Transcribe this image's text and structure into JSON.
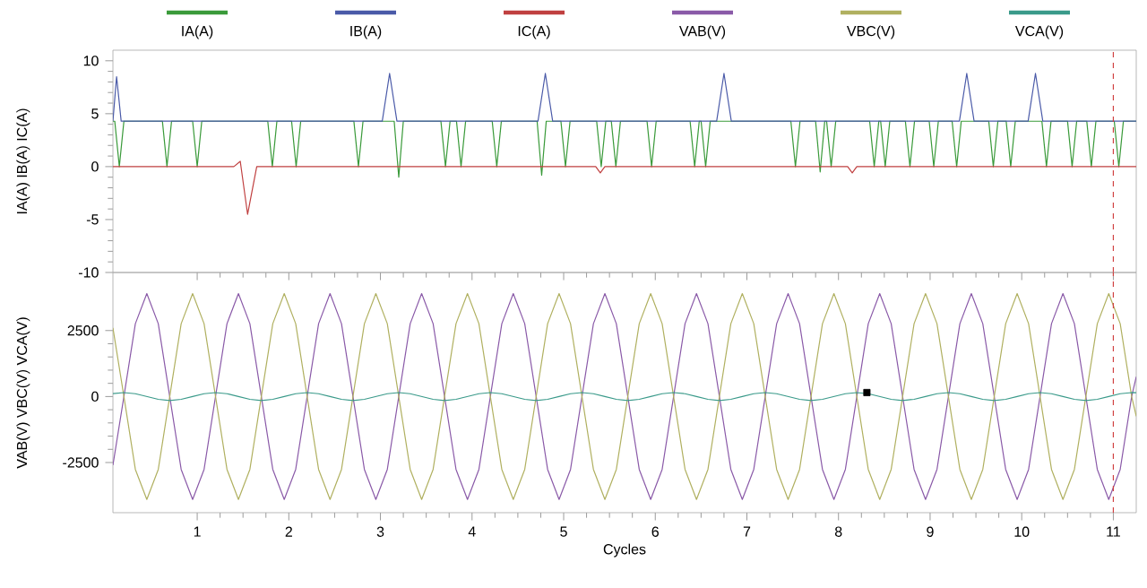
{
  "chart_data": [
    {
      "type": "line",
      "ylabel": "IA(A) IB(A) IC(A)",
      "xlim": [
        0.08,
        11.25
      ],
      "xticks": [
        1,
        2,
        3,
        4,
        5,
        6,
        7,
        8,
        9,
        10,
        11
      ],
      "ylim": [
        -10,
        11
      ],
      "yticks": [
        -10,
        -5,
        0,
        5,
        10
      ],
      "tick_labels": "y",
      "legend": "top",
      "ref_lines": [
        {
          "axis": "x",
          "value": 11,
          "color": "#d04040",
          "line_style": "dashed"
        }
      ],
      "series": [
        {
          "name": "IA(A)",
          "color": "#3a9a3a",
          "x": [
            0.08,
            0.1,
            0.15,
            0.2,
            0.62,
            0.67,
            0.72,
            0.95,
            1.0,
            1.05,
            1.77,
            1.82,
            1.87,
            2.03,
            2.08,
            2.13,
            2.71,
            2.76,
            2.81,
            3.15,
            3.2,
            3.25,
            3.66,
            3.71,
            3.76,
            3.83,
            3.88,
            3.93,
            4.22,
            4.27,
            4.32,
            4.71,
            4.76,
            4.81,
            4.97,
            5.02,
            5.07,
            5.36,
            5.41,
            5.46,
            5.52,
            5.57,
            5.62,
            5.91,
            5.96,
            6.01,
            6.38,
            6.43,
            6.48,
            6.5,
            6.55,
            6.6,
            7.48,
            7.53,
            7.58,
            7.75,
            7.8,
            7.85,
            7.87,
            7.92,
            7.97,
            8.34,
            8.39,
            8.44,
            8.46,
            8.51,
            8.56,
            8.73,
            8.78,
            8.83,
            8.99,
            9.04,
            9.09,
            9.24,
            9.29,
            9.34,
            9.64,
            9.69,
            9.74,
            9.83,
            9.88,
            9.93,
            10.22,
            10.27,
            10.32,
            10.5,
            10.55,
            10.6,
            10.71,
            10.76,
            10.81,
            11.01,
            11.06,
            11.11,
            11.25
          ],
          "values": [
            4.3,
            4.3,
            0,
            4.3,
            4.3,
            0,
            4.3,
            4.3,
            0,
            4.3,
            4.3,
            0,
            4.3,
            4.3,
            0,
            4.3,
            4.3,
            0,
            4.3,
            4.3,
            -1,
            4.3,
            4.3,
            0,
            4.3,
            4.3,
            0,
            4.3,
            4.3,
            0,
            4.3,
            4.3,
            -0.8,
            4.3,
            4.3,
            0,
            4.3,
            4.3,
            0,
            4.3,
            4.3,
            0,
            4.3,
            4.3,
            0,
            4.3,
            4.3,
            0,
            4.3,
            4.3,
            0,
            4.3,
            4.3,
            0,
            4.3,
            4.3,
            -0.5,
            4.3,
            4.3,
            0,
            4.3,
            4.3,
            0,
            4.3,
            4.3,
            0,
            4.3,
            4.3,
            0,
            4.3,
            4.3,
            0,
            4.3,
            4.3,
            0,
            4.3,
            4.3,
            0,
            4.3,
            4.3,
            0,
            4.3,
            4.3,
            0,
            4.3,
            4.3,
            0,
            4.3,
            4.3,
            0,
            4.3,
            4.3,
            0,
            4.3,
            4.3
          ]
        },
        {
          "name": "IB(A)",
          "color": "#4a5aa8",
          "x": [
            0.08,
            0.12,
            0.17,
            3.02,
            3.1,
            3.18,
            4.72,
            4.8,
            4.88,
            6.67,
            6.75,
            6.83,
            9.32,
            9.4,
            9.48,
            10.07,
            10.15,
            10.23,
            11.25
          ],
          "values": [
            4.3,
            8.5,
            4.3,
            4.3,
            8.8,
            4.3,
            4.3,
            8.8,
            4.3,
            4.3,
            8.8,
            4.3,
            4.3,
            8.8,
            4.3,
            4.3,
            8.8,
            4.3,
            4.3
          ]
        },
        {
          "name": "IC(A)",
          "color": "#c04040",
          "x": [
            0.08,
            1.4,
            1.47,
            1.55,
            1.65,
            5.35,
            5.4,
            5.45,
            8.1,
            8.15,
            8.2,
            11.25
          ],
          "values": [
            0,
            0,
            0.5,
            -4.5,
            0,
            0,
            -0.6,
            0,
            0,
            -0.6,
            0,
            0
          ]
        }
      ]
    },
    {
      "type": "line",
      "xlabel": "Cycles",
      "ylabel": "VAB(V) VBC(V) VCA(V)",
      "xlim": [
        0.08,
        11.25
      ],
      "xticks": [
        1,
        2,
        3,
        4,
        5,
        6,
        7,
        8,
        9,
        10,
        11
      ],
      "ylim": [
        -4400,
        4700
      ],
      "yticks": [
        -2500,
        0,
        2500
      ],
      "legend": "top",
      "ref_lines": [
        {
          "axis": "x",
          "value": 11,
          "color": "#d04040",
          "line_style": "dashed"
        }
      ],
      "x": [
        0.08,
        0.2,
        0.325,
        0.45,
        0.575,
        0.7,
        0.825,
        0.95,
        1.075,
        1.2,
        1.325,
        1.45,
        1.575,
        1.7,
        1.825,
        1.95,
        2.075,
        2.2,
        2.325,
        2.45,
        2.575,
        2.7,
        2.825,
        2.95,
        3.075,
        3.2,
        3.325,
        3.45,
        3.575,
        3.7,
        3.825,
        3.95,
        4.075,
        4.2,
        4.325,
        4.45,
        4.575,
        4.7,
        4.825,
        4.95,
        5.075,
        5.2,
        5.325,
        5.45,
        5.575,
        5.7,
        5.825,
        5.95,
        6.075,
        6.2,
        6.325,
        6.45,
        6.575,
        6.7,
        6.825,
        6.95,
        7.075,
        7.2,
        7.325,
        7.45,
        7.575,
        7.7,
        7.825,
        7.95,
        8.075,
        8.2,
        8.325,
        8.45,
        8.575,
        8.7,
        8.825,
        8.95,
        9.075,
        9.2,
        9.325,
        9.45,
        9.575,
        9.7,
        9.825,
        9.95,
        10.075,
        10.2,
        10.325,
        10.45,
        10.575,
        10.7,
        10.825,
        10.95,
        11.075,
        11.2,
        11.25
      ],
      "series": [
        {
          "name": "VAB(V)",
          "color": "#8a5aa8",
          "values": [
            -2600,
            0,
            2760,
            3900,
            2760,
            0,
            -2760,
            -3900,
            -2760,
            0,
            2760,
            3900,
            2760,
            0,
            -2760,
            -3900,
            -2760,
            0,
            2760,
            3900,
            2760,
            0,
            -2760,
            -3900,
            -2760,
            0,
            2760,
            3900,
            2760,
            0,
            -2760,
            -3900,
            -2760,
            0,
            2760,
            3900,
            2760,
            0,
            -2760,
            -3900,
            -2760,
            0,
            2760,
            3900,
            2760,
            0,
            -2760,
            -3900,
            -2760,
            0,
            2760,
            3900,
            2760,
            0,
            -2760,
            -3900,
            -2760,
            0,
            2760,
            3900,
            2760,
            0,
            -2760,
            -3900,
            -2760,
            0,
            2760,
            3900,
            2760,
            0,
            -2760,
            -3900,
            -2760,
            0,
            2760,
            3900,
            2760,
            0,
            -2760,
            -3900,
            -2760,
            0,
            2760,
            3900,
            2760,
            0,
            -2760,
            -3900,
            -2760,
            0,
            750
          ]
        },
        {
          "name": "VBC(V)",
          "color": "#b0b060",
          "values": [
            2600,
            0,
            -2760,
            -3900,
            -2760,
            0,
            2760,
            3900,
            2760,
            0,
            -2760,
            -3900,
            -2760,
            0,
            2760,
            3900,
            2760,
            0,
            -2760,
            -3900,
            -2760,
            0,
            2760,
            3900,
            2760,
            0,
            -2760,
            -3900,
            -2760,
            0,
            2760,
            3900,
            2760,
            0,
            -2760,
            -3900,
            -2760,
            0,
            2760,
            3900,
            2760,
            0,
            -2760,
            -3900,
            -2760,
            0,
            2760,
            3900,
            2760,
            0,
            -2760,
            -3900,
            -2760,
            0,
            2760,
            3900,
            2760,
            0,
            -2760,
            -3900,
            -2760,
            0,
            2760,
            3900,
            2760,
            0,
            -2760,
            -3900,
            -2760,
            0,
            2760,
            3900,
            2760,
            0,
            -2760,
            -3900,
            -2760,
            0,
            2760,
            3900,
            2760,
            0,
            -2760,
            -3900,
            -2760,
            0,
            2760,
            3900,
            2760,
            0,
            -750
          ]
        },
        {
          "name": "VCA(V)",
          "color": "#3a9a8a",
          "values": [
            110,
            150,
            106,
            0,
            -106,
            -150,
            -106,
            0,
            106,
            150,
            106,
            0,
            -106,
            -150,
            -106,
            0,
            106,
            150,
            106,
            0,
            -106,
            -150,
            -106,
            0,
            106,
            150,
            106,
            0,
            -106,
            -150,
            -106,
            0,
            106,
            150,
            106,
            0,
            -106,
            -150,
            -106,
            0,
            106,
            150,
            106,
            0,
            -106,
            -150,
            -106,
            0,
            106,
            150,
            106,
            0,
            -106,
            -150,
            -106,
            0,
            106,
            150,
            106,
            0,
            -106,
            -150,
            -106,
            0,
            106,
            150,
            106,
            0,
            -106,
            -150,
            -106,
            0,
            106,
            150,
            106,
            0,
            -106,
            -150,
            -106,
            0,
            106,
            150,
            106,
            0,
            -106,
            -150,
            -106,
            0,
            106,
            150,
            145
          ]
        },
        {
          "type": "scatter",
          "color": "#000000",
          "marker": "square",
          "x": [
            8.31
          ],
          "values": [
            150
          ]
        }
      ]
    }
  ]
}
